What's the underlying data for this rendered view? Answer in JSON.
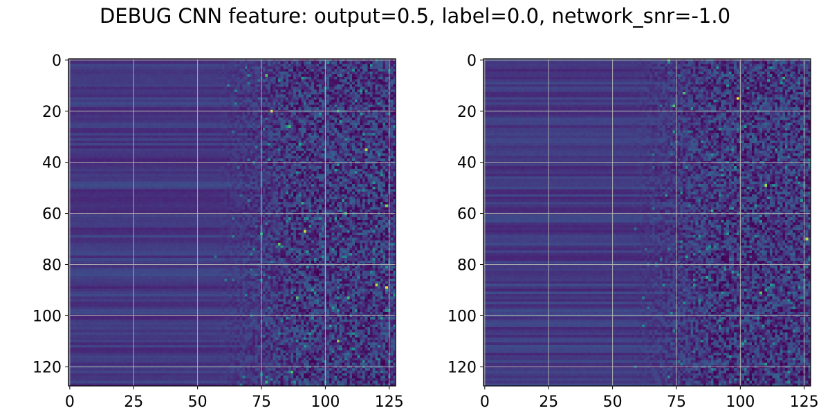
{
  "title": "DEBUG CNN feature: output=0.5, label=0.0, network_snr=-1.0",
  "chart_data": [
    {
      "type": "heatmap",
      "panel": "left",
      "rows": 128,
      "cols": 128,
      "colormap": "viridis",
      "grid": true,
      "xlim": [
        -0.5,
        127.5
      ],
      "ylim": [
        127.5,
        -0.5
      ],
      "xticks": [
        0,
        25,
        50,
        75,
        100,
        125
      ],
      "yticks": [
        0,
        20,
        40,
        60,
        80,
        100,
        120
      ],
      "colors": {
        "grid": "#b0b0b0",
        "axis": "#000000"
      }
    },
    {
      "type": "heatmap",
      "panel": "right",
      "rows": 128,
      "cols": 128,
      "colormap": "viridis",
      "grid": true,
      "xlim": [
        -0.5,
        127.5
      ],
      "ylim": [
        127.5,
        -0.5
      ],
      "xticks": [
        0,
        25,
        50,
        75,
        100,
        125
      ],
      "yticks": [
        0,
        20,
        40,
        60,
        80,
        100,
        120
      ],
      "colors": {
        "grid": "#b0b0b0",
        "axis": "#000000"
      }
    }
  ]
}
